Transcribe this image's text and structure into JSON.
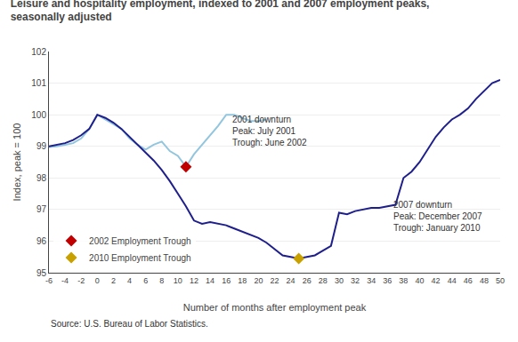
{
  "chart_data": {
    "type": "line",
    "title": "Leisure and hospitality employment, indexed to 2001 and 2007 employment peaks,\nseasonally adjusted",
    "ylabel": "Index, peak = 100",
    "xlabel": "Number of months after employment peak",
    "source": "Source: U.S. Bureau of Labor Statistics.",
    "xlim": [
      -6,
      50
    ],
    "ylim": [
      95,
      102
    ],
    "xticks": [
      -6,
      -4,
      -2,
      0,
      2,
      4,
      6,
      8,
      10,
      12,
      14,
      16,
      18,
      20,
      22,
      24,
      26,
      28,
      30,
      32,
      34,
      36,
      38,
      40,
      42,
      44,
      46,
      48,
      50
    ],
    "yticks": [
      95,
      96,
      97,
      98,
      99,
      100,
      101,
      102
    ],
    "grid": "y",
    "legend": "lower left",
    "annotations": [
      {
        "text": "2001 downturn\nPeak: July 2001\nTrough: June 2002",
        "x": 16.5,
        "y": 100.05
      },
      {
        "text": "2007 downturn\nPeak: December 2007\nTrough: January 2010",
        "x": 36.5,
        "y": 97.35
      }
    ],
    "series": [
      {
        "type": "line",
        "color": "#92c5de",
        "x": [
          -6,
          -5,
          -4,
          -3,
          -2,
          -1,
          0,
          1,
          2,
          3,
          4,
          5,
          6,
          7,
          8,
          9,
          10,
          11,
          12,
          13,
          14,
          15,
          16,
          17,
          18,
          19,
          20,
          21
        ],
        "values": [
          98.98,
          99.0,
          99.05,
          99.1,
          99.25,
          99.55,
          100.0,
          99.85,
          99.7,
          99.55,
          99.25,
          99.05,
          98.9,
          99.05,
          99.15,
          98.85,
          98.7,
          98.35,
          98.75,
          99.05,
          99.35,
          99.65,
          100.0,
          100.0,
          99.9,
          99.8,
          99.8,
          99.85
        ]
      },
      {
        "type": "line",
        "color": "#1f1f8c",
        "x": [
          -6,
          -5,
          -4,
          -3,
          -2,
          -1,
          0,
          1,
          2,
          3,
          4,
          5,
          6,
          7,
          8,
          9,
          10,
          11,
          12,
          13,
          14,
          15,
          16,
          17,
          18,
          19,
          20,
          21,
          22,
          23,
          24,
          25,
          26,
          27,
          28,
          29,
          30,
          31,
          32,
          33,
          34,
          35,
          36,
          37,
          38,
          39,
          40,
          41,
          42,
          43,
          44,
          45,
          46,
          47,
          48,
          49,
          50
        ],
        "values": [
          99.0,
          99.05,
          99.1,
          99.2,
          99.35,
          99.55,
          100.0,
          99.9,
          99.75,
          99.55,
          99.3,
          99.05,
          98.8,
          98.55,
          98.25,
          97.9,
          97.5,
          97.1,
          96.65,
          96.55,
          96.6,
          96.55,
          96.5,
          96.4,
          96.3,
          96.2,
          96.1,
          95.95,
          95.75,
          95.55,
          95.5,
          95.45,
          95.5,
          95.55,
          95.7,
          95.85,
          96.9,
          96.85,
          96.95,
          97.0,
          97.05,
          97.05,
          97.1,
          97.15,
          98.0,
          98.2,
          98.5,
          98.9,
          99.3,
          99.6,
          99.85,
          100.0,
          100.2,
          100.5,
          100.75,
          101.0,
          101.1
        ]
      },
      {
        "type": "scatter",
        "name": "2002 Employment Trough",
        "marker": "diamond",
        "color": "#c00000",
        "x": [
          11
        ],
        "values": [
          98.35
        ]
      },
      {
        "type": "scatter",
        "name": "2010 Employment Trough",
        "marker": "diamond",
        "color": "#c8a000",
        "x": [
          25
        ],
        "values": [
          95.45
        ]
      }
    ]
  }
}
